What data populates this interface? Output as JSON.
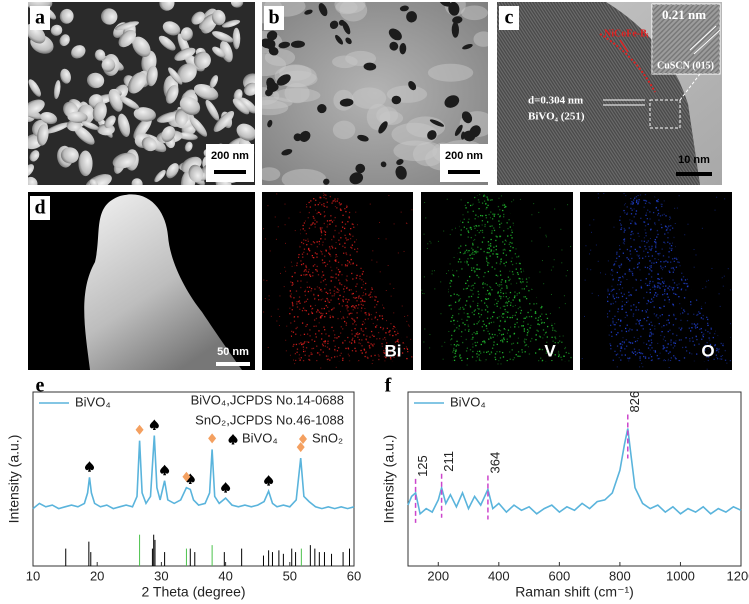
{
  "panels": {
    "labels": [
      "a",
      "b",
      "c",
      "d",
      "e",
      "f"
    ],
    "a": {
      "scale_bar": "200 nm"
    },
    "b": {
      "scale_bar": "200 nm"
    },
    "c": {
      "scale_bar": "10 nm",
      "coating": "NiCoFe-Bᵢ",
      "inset_spacing": "0.21 nm",
      "inset_plane": "CuSCN (015)",
      "spacing": "d=0.304 nm",
      "plane": "BiVO₄ (251)"
    },
    "d": {
      "scale_bar": "50 nm",
      "maps": [
        "Bi",
        "V",
        "O"
      ]
    }
  },
  "chart_data": [
    {
      "type": "line",
      "x_label": "2 Theta (degree)",
      "y_label": "Intensity (a.u.)",
      "x": [
        10,
        11,
        12,
        13,
        14,
        15,
        16,
        17,
        18,
        18.5,
        18.8,
        19.1,
        19.6,
        20.5,
        21.5,
        22.5,
        23.5,
        24.5,
        25.5,
        26.2,
        26.6,
        27,
        27.6,
        28.3,
        28.9,
        29.3,
        29.8,
        30.5,
        31,
        32,
        33,
        33.9,
        34.5,
        35,
        35.8,
        36.8,
        37.5,
        37.9,
        38.3,
        39,
        40,
        41,
        42,
        43,
        44,
        45,
        46,
        46.7,
        47.3,
        48,
        49,
        50,
        51,
        51.7,
        52.2,
        53,
        54,
        55,
        56,
        57,
        58,
        59,
        60
      ],
      "series": [
        {
          "name": "BiVO₄",
          "color": "#5ab4dc",
          "values": [
            33,
            36,
            34,
            35,
            33,
            34,
            35,
            34,
            36,
            42,
            51,
            42,
            36,
            34,
            35,
            33,
            34,
            35,
            34,
            40,
            72,
            42,
            36,
            40,
            75,
            45,
            38,
            49,
            38,
            36,
            38,
            45,
            44,
            38,
            35,
            36,
            42,
            67,
            40,
            36,
            39,
            35,
            34,
            35,
            34,
            35,
            37,
            43,
            36,
            34,
            35,
            34,
            38,
            62,
            40,
            37,
            34,
            33,
            34,
            33,
            34,
            33,
            34
          ]
        }
      ],
      "xlim": [
        10,
        60
      ],
      "xticks": [
        10,
        20,
        30,
        40,
        50,
        60
      ],
      "ylim": [
        0,
        100
      ],
      "references": [
        {
          "name": "BiVO₄,JCPDS No.14-0688",
          "color": "#000000",
          "positions": [
            15.1,
            18.7,
            19.0,
            28.6,
            28.8,
            29.0,
            30.5,
            34.5,
            35.2,
            39.8,
            42.5,
            45.9,
            46.7,
            47.3,
            48.3,
            49.0,
            50.3,
            50.9,
            53.2,
            53.9,
            54.6,
            55.4,
            56.5,
            58.3,
            59.3
          ],
          "heights": [
            10,
            14,
            8,
            10,
            18,
            15,
            8,
            10,
            8,
            8,
            10,
            6,
            9,
            8,
            9,
            7,
            10,
            8,
            12,
            10,
            8,
            8,
            7,
            8,
            10
          ]
        },
        {
          "name": "SnO₂,JCPDS No.46-1088",
          "color": "#4cc24c",
          "positions": [
            26.6,
            33.9,
            37.9,
            51.8
          ],
          "heights": [
            18,
            10,
            12,
            10
          ]
        }
      ],
      "phase_markers": [
        {
          "name": "BiVO₄",
          "shape": "spade",
          "color": "#000000",
          "x": [
            18.8,
            28.9,
            30.5,
            34.5,
            40,
            46.7
          ]
        },
        {
          "name": "SnO₂",
          "shape": "diamond",
          "color": "#f4a060",
          "x": [
            26.6,
            33.9,
            37.9,
            51.7
          ]
        }
      ]
    },
    {
      "type": "line",
      "x_label": "Raman shift (cm⁻¹)",
      "y_label": "Intensity (a.u.)",
      "x": [
        100,
        112,
        125,
        140,
        160,
        180,
        200,
        211,
        225,
        240,
        260,
        280,
        300,
        320,
        340,
        364,
        380,
        400,
        425,
        450,
        475,
        500,
        525,
        550,
        575,
        600,
        625,
        650,
        675,
        700,
        725,
        750,
        775,
        800,
        815,
        826,
        835,
        850,
        875,
        900,
        925,
        950,
        975,
        1000,
        1025,
        1050,
        1075,
        1100,
        1125,
        1150,
        1175,
        1200
      ],
      "series": [
        {
          "name": "BiVO₄",
          "color": "#5ab4dc",
          "values": [
            35,
            40,
            42,
            30,
            33,
            31,
            38,
            45,
            36,
            41,
            34,
            42,
            33,
            40,
            35,
            44,
            33,
            36,
            31,
            35,
            32,
            34,
            30,
            33,
            35,
            31,
            34,
            32,
            36,
            33,
            37,
            38,
            42,
            55,
            70,
            79,
            66,
            45,
            36,
            33,
            35,
            31,
            34,
            30,
            33,
            31,
            34,
            30,
            33,
            31,
            34,
            32
          ]
        }
      ],
      "xlim": [
        100,
        1200
      ],
      "xticks": [
        200,
        400,
        600,
        800,
        1000,
        1200
      ],
      "ylim": [
        0,
        100
      ],
      "peaks": [
        125,
        211,
        364,
        826
      ],
      "peak_color": "#cc44cc"
    }
  ]
}
